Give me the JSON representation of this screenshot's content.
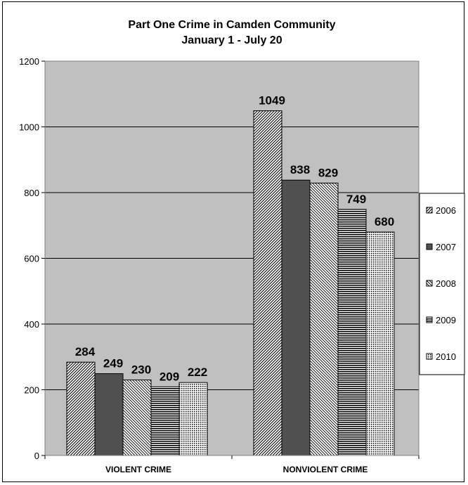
{
  "chart_data": {
    "type": "bar",
    "title": [
      "Part One Crime in Camden Community",
      "January 1 - July 20"
    ],
    "xlabel": "",
    "ylabel": "",
    "categories": [
      "VIOLENT CRIME",
      "NONVIOLENT CRIME"
    ],
    "series": [
      {
        "name": "2006",
        "values": [
          284,
          1049
        ],
        "pattern": "diag-fine"
      },
      {
        "name": "2007",
        "values": [
          249,
          838
        ],
        "pattern": "solid-dark"
      },
      {
        "name": "2008",
        "values": [
          230,
          829
        ],
        "pattern": "diag-wide"
      },
      {
        "name": "2009",
        "values": [
          209,
          749
        ],
        "pattern": "horizontal"
      },
      {
        "name": "2010",
        "values": [
          222,
          680
        ],
        "pattern": "dots"
      }
    ],
    "ylim": [
      0,
      1200
    ],
    "yticks": [
      0,
      200,
      400,
      600,
      800,
      1000,
      1200
    ],
    "grid": true,
    "legend_position": "right",
    "colors": {
      "plot_bg": "#c0c0c0",
      "bar_dark": "#505050",
      "gridline": "#000000"
    }
  }
}
